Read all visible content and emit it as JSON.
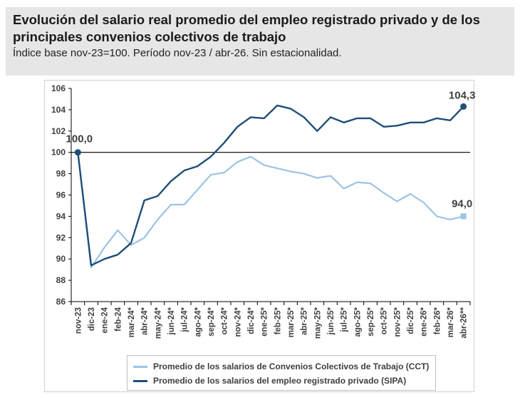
{
  "header": {
    "title": "Evolución del salario real promedio del empleo registrado privado y de los principales convenios colectivos de trabajo",
    "subtitle": "Índice base nov-23=100. Período nov-23 / abr-26. Sin estacionalidad."
  },
  "colors": {
    "sipa": "#1f4e79",
    "cct": "#9dc3e6",
    "axis": "#000000",
    "text": "#404040"
  },
  "chart_data": {
    "type": "line",
    "categories": [
      "nov-23",
      "dic-23",
      "ene-24",
      "feb-24",
      "mar-24*",
      "abr-24*",
      "may-24*",
      "jun-24*",
      "jul-24*",
      "ago-24*",
      "sep-24*",
      "oct-24*",
      "nov-24*",
      "dic-24*",
      "ene-25*",
      "feb-25*",
      "mar-25*",
      "abr-25*",
      "may-25*",
      "jun-25*",
      "jul-25*",
      "ago-25*",
      "sep-25*",
      "oct-25*",
      "nov-25*",
      "dic-25*",
      "ene-26*",
      "feb-26*",
      "mar-26*",
      "abr-26**"
    ],
    "series": [
      {
        "name": "Promedio de los salarios de Convenios Colectivos de Trabajo (CCT)",
        "color": "#9dc3e6",
        "values": [
          100.0,
          89.2,
          91.1,
          92.7,
          91.3,
          92.0,
          93.7,
          95.1,
          95.1,
          96.5,
          97.9,
          98.1,
          99.1,
          99.6,
          98.8,
          98.5,
          98.2,
          98.0,
          97.6,
          97.8,
          96.6,
          97.2,
          97.1,
          96.2,
          95.4,
          96.1,
          95.3,
          94.0,
          93.7,
          94.0
        ]
      },
      {
        "name": "Promedio de los salarios del empleo registrado privado (SIPA)",
        "color": "#1f4e79",
        "values": [
          100.0,
          89.4,
          90.0,
          90.4,
          91.5,
          95.5,
          95.9,
          97.3,
          98.3,
          98.7,
          99.6,
          100.9,
          102.4,
          103.3,
          103.2,
          104.4,
          104.1,
          103.3,
          102.0,
          103.3,
          102.8,
          103.2,
          103.2,
          102.4,
          102.5,
          102.8,
          102.8,
          103.2,
          103.0,
          104.3
        ]
      }
    ],
    "ylim": [
      86,
      106
    ],
    "yticks": [
      "86",
      "88",
      "90",
      "92",
      "94",
      "96",
      "98",
      "100",
      "102",
      "104",
      "106"
    ],
    "annotations": {
      "start": "100,0",
      "end_sipa": "104,3",
      "end_cct": "94,0"
    },
    "reference_line": 100,
    "grid": false,
    "legend": "bottom"
  }
}
